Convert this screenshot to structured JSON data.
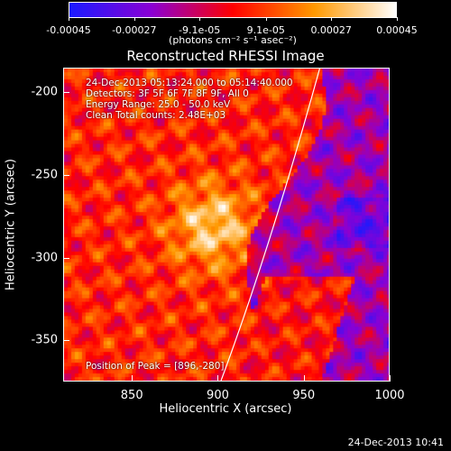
{
  "chart_data": {
    "type": "heatmap",
    "title": "Reconstructed RHESSI Image",
    "xlabel": "Heliocentric X (arcsec)",
    "ylabel": "Heliocentric Y (arcsec)",
    "xlim": [
      810,
      1000
    ],
    "ylim": [
      -375,
      -185
    ],
    "x_ticks": [
      "850",
      "900",
      "950",
      "1000"
    ],
    "x_tick_values": [
      850,
      900,
      950,
      1000
    ],
    "y_ticks": [
      "-200",
      "-250",
      "-300",
      "-350"
    ],
    "y_tick_values": [
      -200,
      -250,
      -300,
      -350
    ],
    "colorbar": {
      "ticks": [
        "-0.00045",
        "-0.00027",
        "-9.1e-05",
        "9.1e-05",
        "0.00027",
        "0.00045"
      ],
      "tick_values": [
        -0.00045,
        -0.00027,
        -9.1e-05,
        9.1e-05,
        0.00027,
        0.00045
      ],
      "range": [
        -0.00045,
        0.00045
      ],
      "label": "(photons cm⁻² s⁻¹ asec⁻²)",
      "colors": [
        "#1a1aff",
        "#8a00d4",
        "#ff0000",
        "#ff9900",
        "#ffffff"
      ]
    },
    "annotations": [
      "24-Dec-2013 05:13:24.000 to 05:14:40.000",
      "Detectors: 3F 5F 6F 7F 8F 9F, All 0",
      "Energy Range: 25.0 - 50.0 keV",
      "Clean     Total counts: 2.48E+03"
    ],
    "peak_label": "Position of Peak = [896,-280]",
    "peak": [
      896,
      -280
    ]
  },
  "footer": "24-Dec-2013 10:41"
}
